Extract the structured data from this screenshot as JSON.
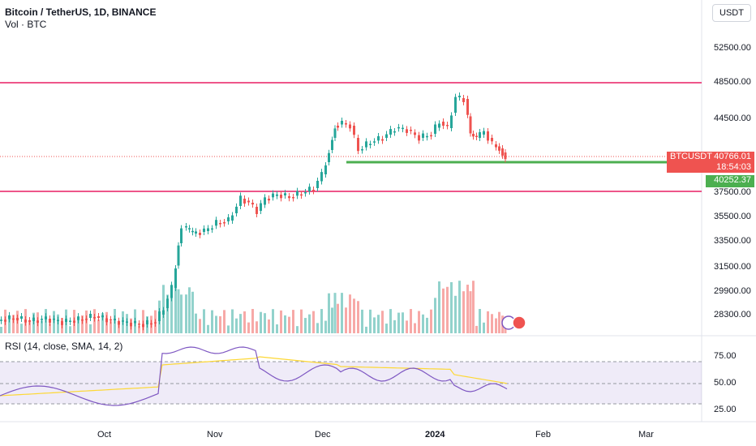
{
  "header": {
    "symbol_title": "Bitcoin / TetherUS, 1D, BINANCE",
    "volume_label": "Vol · BTC",
    "currency_button": "USDT"
  },
  "price_axis": {
    "ticks": [
      "52500.00",
      "48500.00",
      "44500.00",
      "37500.00",
      "35500.00",
      "33500.00",
      "31500.00",
      "29900.00",
      "28300.00"
    ]
  },
  "price_tags": {
    "symbol": "BTCUSDT",
    "last_price": "40766.01",
    "countdown": "18:54:03",
    "support_price": "40252.37"
  },
  "time_axis": {
    "ticks": [
      "Oct",
      "Nov",
      "Dec",
      "2024",
      "Feb",
      "Mar"
    ]
  },
  "rsi": {
    "legend": "RSI (14, close, SMA, 14, 2)",
    "ticks": [
      "75.00",
      "50.00",
      "25.00"
    ]
  },
  "colors": {
    "up": "#26a69a",
    "down": "#ef5350",
    "resistance_line": "#e91e63",
    "support_line": "#4caf50",
    "rsi_line": "#7e57c2",
    "rsi_ma": "#fdd835",
    "rsi_band": "#7e57c2"
  }
}
